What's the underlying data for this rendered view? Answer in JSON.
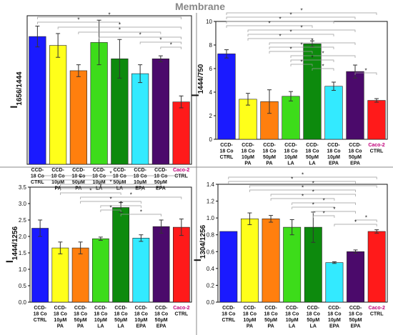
{
  "figure_title": "Membrane",
  "chart_data": [
    {
      "type": "bar",
      "ylabel": "I1656/1444",
      "ylabel_main": "I",
      "ylabel_sub": "1656/1444",
      "categories": [
        [
          "CCD-",
          "18 Co",
          "CTRL"
        ],
        [
          "CCD-",
          "18 Co",
          "10μM",
          "PA"
        ],
        [
          "CCD-",
          "18 Co",
          "50μM",
          "PA"
        ],
        [
          "CCD-",
          "18 Co",
          "10μM",
          "LA"
        ],
        [
          "CCD-",
          "18 Co",
          "50μM",
          "LA"
        ],
        [
          "CCD-",
          "18 Co",
          "10μM",
          "EPA"
        ],
        [
          "CCD-",
          "18 Co",
          "50μM",
          "EPA"
        ],
        [
          "Caco-2",
          "CTRL"
        ]
      ],
      "values": [
        4.3,
        4.0,
        3.15,
        4.1,
        3.55,
        3.05,
        3.55,
        2.1
      ],
      "errors": [
        0.35,
        0.4,
        0.2,
        0.75,
        0.65,
        0.3,
        0.1,
        0.2
      ],
      "ylim": [
        0,
        5
      ],
      "yticks": [],
      "colors": [
        "#1a1aff",
        "#ffff1a",
        "#ff7f0e",
        "#3ddc1a",
        "#0d8a0d",
        "#33eaff",
        "#4b0a6b",
        "#ff1a1a"
      ],
      "sig_brackets": [
        [
          0,
          7
        ],
        [
          0,
          4
        ],
        [
          1,
          7
        ],
        [
          2,
          6
        ],
        [
          3,
          7
        ],
        [
          5,
          7
        ],
        [
          6,
          7
        ]
      ],
      "sig_symbol": "*"
    },
    {
      "type": "bar",
      "ylabel": "I1444/750",
      "ylabel_main": "I",
      "ylabel_sub": "1444/750",
      "categories": [
        [
          "CCD-",
          "18 Co",
          "CTRL"
        ],
        [
          "CCD-",
          "18 Co",
          "10μM",
          "PA"
        ],
        [
          "CCD-",
          "18 Co",
          "50μM",
          "PA"
        ],
        [
          "CCD-",
          "18 Co",
          "10μM",
          "LA"
        ],
        [
          "CCD-",
          "18 Co",
          "50μM",
          "LA"
        ],
        [
          "CCD-",
          "18 Co",
          "10μM",
          "EPA"
        ],
        [
          "CCD-",
          "18 Co",
          "50μM",
          "EPA"
        ],
        [
          "Caco-2",
          "CTRL"
        ]
      ],
      "values": [
        7.25,
        3.4,
        3.2,
        3.65,
        8.1,
        4.5,
        5.75,
        3.3
      ],
      "errors": [
        0.35,
        0.5,
        1.0,
        0.4,
        0.25,
        0.35,
        0.55,
        0.15
      ],
      "ylim": [
        0,
        10
      ],
      "yticks": [
        0,
        2,
        4,
        6,
        8,
        10
      ],
      "colors": [
        "#1a1aff",
        "#ffff1a",
        "#ff7f0e",
        "#3ddc1a",
        "#0d8a0d",
        "#33eaff",
        "#4b0a6b",
        "#ff1a1a"
      ],
      "sig_brackets": [
        [
          0,
          7
        ],
        [
          0,
          6
        ],
        [
          0,
          5
        ],
        [
          0,
          4
        ],
        [
          1,
          6
        ],
        [
          1,
          5
        ],
        [
          1,
          4
        ],
        [
          2,
          6
        ],
        [
          2,
          5
        ],
        [
          2,
          4
        ],
        [
          3,
          6
        ],
        [
          3,
          5
        ],
        [
          3,
          4
        ],
        [
          4,
          5
        ],
        [
          6,
          7
        ]
      ],
      "sig_symbol": "*"
    },
    {
      "type": "bar",
      "ylabel": "I1444/1256",
      "ylabel_main": "I",
      "ylabel_sub": "1444/1256",
      "categories": [
        [
          "CCD-",
          "18 Co",
          "CTRL"
        ],
        [
          "CCD-",
          "18 Co",
          "10μM",
          "PA"
        ],
        [
          "CCD-",
          "18 Co",
          "50μM",
          "PA"
        ],
        [
          "CCD-",
          "18 Co",
          "10μM",
          "LA"
        ],
        [
          "CCD-",
          "18 Co",
          "50μM",
          "LA"
        ],
        [
          "CCD-",
          "18 Co",
          "10μM",
          "EPA"
        ],
        [
          "CCD-",
          "18 Co",
          "50μM",
          "EPA"
        ],
        [
          "Caco-2",
          "CTRL"
        ]
      ],
      "values": [
        2.25,
        1.65,
        1.65,
        1.93,
        2.88,
        1.95,
        2.3,
        2.28
      ],
      "errors": [
        0.25,
        0.18,
        0.18,
        0.05,
        0.15,
        0.1,
        0.2,
        0.25
      ],
      "ylim": [
        0,
        3.5
      ],
      "yticks": [
        0,
        0.5,
        1.0,
        1.5,
        2.0,
        2.5,
        3.0,
        3.5
      ],
      "colors": [
        "#1a1aff",
        "#ffff1a",
        "#ff7f0e",
        "#3ddc1a",
        "#0d8a0d",
        "#33eaff",
        "#4b0a6b",
        "#ff1a1a"
      ],
      "sig_brackets": [
        [
          0,
          7
        ],
        [
          0,
          4
        ],
        [
          1,
          6
        ],
        [
          1,
          5
        ],
        [
          1,
          4
        ],
        [
          2,
          7
        ],
        [
          2,
          5
        ],
        [
          3,
          5
        ],
        [
          3,
          4
        ],
        [
          4,
          6
        ]
      ],
      "sig_symbol": "*"
    },
    {
      "type": "bar",
      "ylabel": "I1304/1256",
      "ylabel_main": "I",
      "ylabel_sub": "1304/1256",
      "categories": [
        [
          "CCD-",
          "18 Co",
          "CTRL"
        ],
        [
          "CCD-",
          "18 Co",
          "10μM",
          "PA"
        ],
        [
          "CCD-",
          "18 Co",
          "50μM",
          "PA"
        ],
        [
          "CCD-",
          "18 Co",
          "10μM",
          "LA"
        ],
        [
          "CCD-",
          "18 Co",
          "50μM",
          "LA"
        ],
        [
          "CCD-",
          "18 Co",
          "10μM",
          "EPA"
        ],
        [
          "CCD-",
          "18 Co",
          "50μM",
          "EPA"
        ],
        [
          "Caco-2",
          "CTRL"
        ]
      ],
      "values": [
        0.84,
        0.99,
        0.99,
        0.89,
        0.89,
        0.47,
        0.6,
        0.84
      ],
      "errors": [
        0.0,
        0.07,
        0.04,
        0.09,
        0.18,
        0.01,
        0.02,
        0.02
      ],
      "ylim": [
        0,
        1.4
      ],
      "yticks": [
        0,
        0.2,
        0.4,
        0.6,
        0.8,
        1.0,
        1.2,
        1.4
      ],
      "colors": [
        "#1a1aff",
        "#ffff1a",
        "#ff7f0e",
        "#3ddc1a",
        "#0d8a0d",
        "#33eaff",
        "#4b0a6b",
        "#ff1a1a"
      ],
      "sig_brackets": [
        [
          0,
          7
        ],
        [
          0,
          6
        ],
        [
          1,
          7
        ],
        [
          1,
          6
        ],
        [
          2,
          6
        ],
        [
          2,
          5
        ],
        [
          3,
          6
        ],
        [
          3,
          5
        ],
        [
          4,
          6
        ],
        [
          4,
          5
        ],
        [
          6,
          7
        ],
        [
          5,
          7
        ]
      ],
      "sig_symbol": "*"
    }
  ]
}
